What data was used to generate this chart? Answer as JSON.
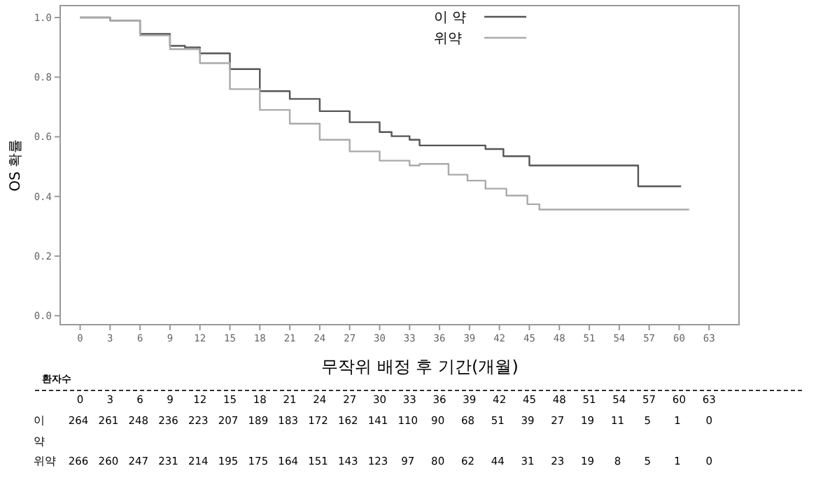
{
  "chart_data": {
    "type": "step",
    "xlabel": "무작위 배정 후 기간(개월)",
    "ylabel": "OS 확률",
    "xlim": [
      -2,
      66
    ],
    "ylim": [
      -0.03,
      1.04
    ],
    "xticks": [
      0,
      3,
      6,
      9,
      12,
      15,
      18,
      21,
      24,
      27,
      30,
      33,
      36,
      39,
      42,
      45,
      48,
      51,
      54,
      57,
      60,
      63
    ],
    "x2lim": [
      -2,
      66
    ],
    "x2ticks": [
      0,
      3,
      6,
      9,
      12,
      15,
      18,
      21,
      24,
      27,
      30,
      33,
      36,
      39,
      42,
      45,
      48,
      51,
      54,
      57,
      60,
      63
    ],
    "yticks": [
      {
        "value": 0,
        "label": "0.0"
      },
      0.2,
      0.4,
      0.6,
      0.8,
      {
        "value": 1,
        "label": "1.0"
      }
    ],
    "grid": false,
    "legend": "top right",
    "marker": "none",
    "line_style": "solid",
    "series": [
      {
        "name": "이 약",
        "color": "#555555",
        "x": [
          0,
          3,
          6,
          9,
          10.5,
          12,
          15,
          18,
          21,
          24,
          27,
          30,
          31.2,
          33,
          34,
          40.6,
          42.4,
          45,
          55.9,
          60.2
        ],
        "values": [
          1,
          0.99,
          0.945,
          0.905,
          0.9,
          0.88,
          0.827,
          0.753,
          0.727,
          0.686,
          0.649,
          0.616,
          0.602,
          0.59,
          0.571,
          0.559,
          0.535,
          0.504,
          0.434,
          0.434
        ]
      },
      {
        "name": "위약",
        "color": "#aaaaaa",
        "x": [
          0,
          3,
          6,
          9,
          12,
          15,
          18,
          21,
          24,
          27,
          30,
          33,
          34,
          36.9,
          38.8,
          40.6,
          42.7,
          44.8,
          46,
          61
        ],
        "values": [
          1,
          0.99,
          0.94,
          0.894,
          0.847,
          0.76,
          0.69,
          0.644,
          0.59,
          0.551,
          0.52,
          0.504,
          0.509,
          0.473,
          0.453,
          0.426,
          0.403,
          0.374,
          0.356,
          0.356
        ]
      }
    ],
    "annotations": [
      "환자수",
      "이 약",
      "264 261 248 236 223 207 189 183 172 162 141 110 90 68 51 39 27 19 11 5 1 0",
      "위약",
      "266 260 247 231 214 195 175 164 151 143 123 97 80 62 44 31 23 19 8 5 1 0"
    ]
  }
}
